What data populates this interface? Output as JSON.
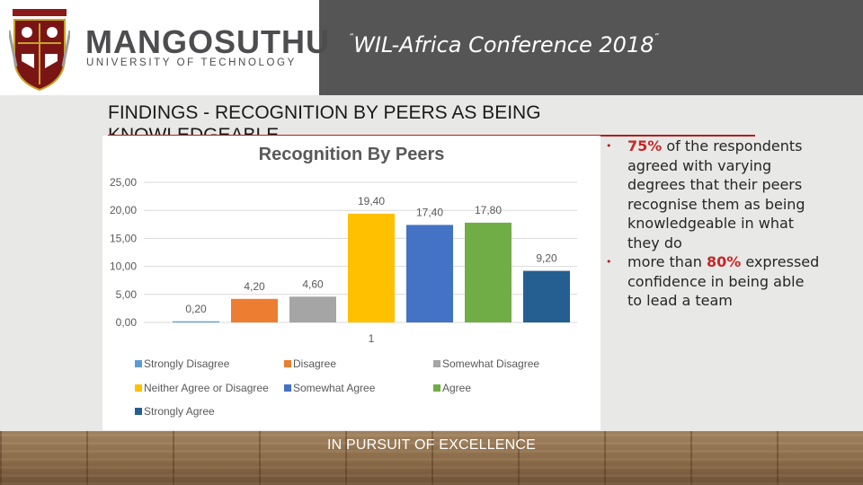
{
  "header": {
    "brand_name": "MANGOSUTHU",
    "brand_sub": "UNIVERSITY OF TECHNOLOGY",
    "conference_title": "WIL-Africa Conference 2018",
    "quote_open": "“",
    "quote_close": "”"
  },
  "slide": {
    "heading": "FINDINGS - RECOGNITION BY PEERS AS BEING KNOWLEDGEABLE",
    "footer": "IN PURSUIT OF EXCELLENCE"
  },
  "bullets": [
    {
      "highlight": "75%",
      "text": " of the respondents agreed with varying degrees that their peers recognise them as being knowledgeable in what they do"
    },
    {
      "prefix": "more than ",
      "highlight": "80%",
      "text": " expressed confidence in being able to lead a team"
    }
  ],
  "colors": {
    "header_band": "#555556",
    "accent_red": "#c62828"
  },
  "chart_data": {
    "type": "bar",
    "title": "Recognition By Peers",
    "categories": [
      "1"
    ],
    "ylim": [
      0,
      25
    ],
    "yticks": [
      "0,00",
      "5,00",
      "10,00",
      "15,00",
      "20,00",
      "25,00"
    ],
    "ytick_values": [
      0,
      5,
      10,
      15,
      20,
      25
    ],
    "grid": true,
    "legend_position": "bottom",
    "series": [
      {
        "name": "Strongly Disagree",
        "value": 0.2,
        "label": "0,20",
        "color": "#5b9bd5"
      },
      {
        "name": "Disagree",
        "value": 4.2,
        "label": "4,20",
        "color": "#ed7d31"
      },
      {
        "name": "Somewhat Disagree",
        "value": 4.6,
        "label": "4,60",
        "color": "#a5a5a5"
      },
      {
        "name": "Neither Agree or Disagree",
        "value": 19.4,
        "label": "19,40",
        "color": "#ffc000"
      },
      {
        "name": "Somewhat Agree",
        "value": 17.4,
        "label": "17,40",
        "color": "#4472c4"
      },
      {
        "name": "Agree",
        "value": 17.8,
        "label": "17,80",
        "color": "#70ad47"
      },
      {
        "name": "Strongly Agree",
        "value": 9.2,
        "label": "9,20",
        "color": "#255e91"
      }
    ]
  }
}
